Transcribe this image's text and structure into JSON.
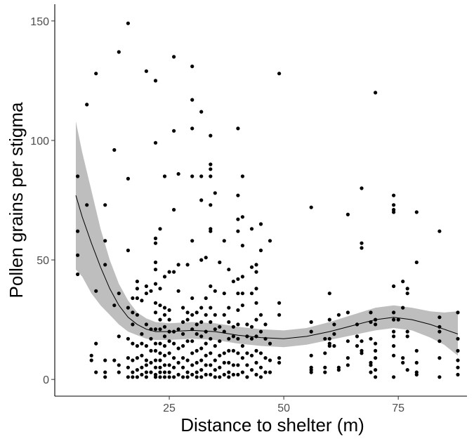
{
  "chart_data": {
    "type": "scatter",
    "title": "",
    "xlabel": "Distance to shelter (m)",
    "ylabel": "Pollen grains per stigma",
    "xlim": [
      0,
      90
    ],
    "ylim": [
      -7,
      157
    ],
    "x_ticks": [
      25,
      50,
      75
    ],
    "y_ticks": [
      0,
      50,
      100,
      150
    ],
    "grid": false,
    "legend": "none",
    "point_color": "#000000",
    "smooth_color": "#000000",
    "band_color": "#bebebe",
    "points": [
      [
        5,
        85
      ],
      [
        5,
        62
      ],
      [
        5,
        52
      ],
      [
        5,
        44
      ],
      [
        7,
        115
      ],
      [
        7,
        73
      ],
      [
        8,
        10
      ],
      [
        8,
        8
      ],
      [
        9,
        128
      ],
      [
        9,
        37
      ],
      [
        9,
        15
      ],
      [
        9,
        3
      ],
      [
        11,
        73
      ],
      [
        11,
        58
      ],
      [
        11,
        48
      ],
      [
        11,
        8
      ],
      [
        11,
        3
      ],
      [
        11,
        1
      ],
      [
        13,
        96
      ],
      [
        13,
        31
      ],
      [
        13,
        8
      ],
      [
        14,
        137
      ],
      [
        14,
        36
      ],
      [
        14,
        18
      ],
      [
        14,
        6
      ],
      [
        14,
        3
      ],
      [
        16,
        149
      ],
      [
        16,
        84
      ],
      [
        16,
        54
      ],
      [
        16,
        30
      ],
      [
        16,
        17
      ],
      [
        16,
        9
      ],
      [
        16,
        5
      ],
      [
        16,
        1
      ],
      [
        17,
        34
      ],
      [
        17,
        28
      ],
      [
        17,
        23
      ],
      [
        17,
        15
      ],
      [
        17,
        8
      ],
      [
        17,
        3
      ],
      [
        17,
        1
      ],
      [
        18,
        41
      ],
      [
        18,
        38
      ],
      [
        18,
        34
      ],
      [
        18,
        27
      ],
      [
        18,
        14
      ],
      [
        18,
        9
      ],
      [
        18,
        4
      ],
      [
        18,
        1
      ],
      [
        19,
        33
      ],
      [
        19,
        19
      ],
      [
        19,
        15
      ],
      [
        19,
        10
      ],
      [
        19,
        5
      ],
      [
        19,
        2
      ],
      [
        20,
        129
      ],
      [
        20,
        39
      ],
      [
        20,
        36
      ],
      [
        20,
        23
      ],
      [
        20,
        14
      ],
      [
        20,
        8
      ],
      [
        20,
        6
      ],
      [
        20,
        3
      ],
      [
        20,
        1
      ],
      [
        21,
        37
      ],
      [
        21,
        21
      ],
      [
        21,
        17
      ],
      [
        21,
        12
      ],
      [
        21,
        7
      ],
      [
        21,
        3
      ],
      [
        22,
        125
      ],
      [
        22,
        99
      ],
      [
        22,
        59
      ],
      [
        22,
        57
      ],
      [
        22,
        49
      ],
      [
        22,
        46
      ],
      [
        22,
        40
      ],
      [
        22,
        32
      ],
      [
        22,
        28
      ],
      [
        22,
        21
      ],
      [
        22,
        15
      ],
      [
        22,
        12
      ],
      [
        22,
        8
      ],
      [
        22,
        5
      ],
      [
        22,
        2
      ],
      [
        22,
        1
      ],
      [
        23,
        63
      ],
      [
        23,
        38
      ],
      [
        23,
        31
      ],
      [
        23,
        25
      ],
      [
        23,
        21
      ],
      [
        23,
        15
      ],
      [
        23,
        11
      ],
      [
        23,
        8
      ],
      [
        23,
        5
      ],
      [
        23,
        3
      ],
      [
        23,
        1
      ],
      [
        24,
        85
      ],
      [
        24,
        43
      ],
      [
        24,
        30
      ],
      [
        24,
        27
      ],
      [
        24,
        22
      ],
      [
        24,
        18
      ],
      [
        24,
        14
      ],
      [
        24,
        10
      ],
      [
        24,
        6
      ],
      [
        24,
        3
      ],
      [
        24,
        1
      ],
      [
        25,
        45
      ],
      [
        25,
        29
      ],
      [
        25,
        25
      ],
      [
        25,
        20
      ],
      [
        25,
        16
      ],
      [
        25,
        11
      ],
      [
        25,
        6
      ],
      [
        25,
        3
      ],
      [
        25,
        1
      ],
      [
        26,
        135
      ],
      [
        26,
        104
      ],
      [
        26,
        71
      ],
      [
        26,
        45
      ],
      [
        26,
        20
      ],
      [
        26,
        15
      ],
      [
        26,
        9
      ],
      [
        26,
        5
      ],
      [
        26,
        1
      ],
      [
        27,
        86
      ],
      [
        27,
        48
      ],
      [
        27,
        37
      ],
      [
        27,
        21
      ],
      [
        27,
        13
      ],
      [
        27,
        7
      ],
      [
        27,
        2
      ],
      [
        28,
        30
      ],
      [
        28,
        24
      ],
      [
        28,
        19
      ],
      [
        28,
        14
      ],
      [
        28,
        9
      ],
      [
        28,
        5
      ],
      [
        28,
        1
      ],
      [
        29,
        48
      ],
      [
        29,
        28
      ],
      [
        29,
        25
      ],
      [
        29,
        16
      ],
      [
        29,
        8
      ],
      [
        29,
        3
      ],
      [
        29,
        1
      ],
      [
        30,
        131
      ],
      [
        30,
        117
      ],
      [
        30,
        105
      ],
      [
        30,
        85
      ],
      [
        30,
        58
      ],
      [
        30,
        34
      ],
      [
        30,
        27
      ],
      [
        30,
        21
      ],
      [
        30,
        16
      ],
      [
        30,
        11
      ],
      [
        30,
        6
      ],
      [
        30,
        2
      ],
      [
        31,
        28
      ],
      [
        31,
        23
      ],
      [
        31,
        19
      ],
      [
        31,
        12
      ],
      [
        31,
        7
      ],
      [
        31,
        3
      ],
      [
        31,
        1
      ],
      [
        32,
        112
      ],
      [
        32,
        85
      ],
      [
        32,
        75
      ],
      [
        32,
        50
      ],
      [
        32,
        30
      ],
      [
        32,
        24
      ],
      [
        32,
        18
      ],
      [
        32,
        13
      ],
      [
        32,
        8
      ],
      [
        32,
        4
      ],
      [
        32,
        1
      ],
      [
        33,
        51
      ],
      [
        33,
        34
      ],
      [
        33,
        27
      ],
      [
        33,
        20
      ],
      [
        33,
        15
      ],
      [
        33,
        10
      ],
      [
        33,
        6
      ],
      [
        33,
        2
      ],
      [
        34,
        102
      ],
      [
        34,
        90
      ],
      [
        34,
        88
      ],
      [
        34,
        85
      ],
      [
        34,
        73
      ],
      [
        34,
        63
      ],
      [
        34,
        62
      ],
      [
        34,
        39
      ],
      [
        34,
        30
      ],
      [
        34,
        24
      ],
      [
        34,
        17
      ],
      [
        34,
        11
      ],
      [
        34,
        6
      ],
      [
        34,
        2
      ],
      [
        35,
        78
      ],
      [
        35,
        37
      ],
      [
        35,
        27
      ],
      [
        35,
        21
      ],
      [
        35,
        14
      ],
      [
        35,
        8
      ],
      [
        35,
        4
      ],
      [
        35,
        1
      ],
      [
        36,
        49
      ],
      [
        36,
        22
      ],
      [
        36,
        16
      ],
      [
        36,
        10
      ],
      [
        36,
        5
      ],
      [
        36,
        1
      ],
      [
        37,
        58
      ],
      [
        37,
        36
      ],
      [
        37,
        27
      ],
      [
        37,
        20
      ],
      [
        37,
        11
      ],
      [
        37,
        7
      ],
      [
        37,
        2
      ],
      [
        38,
        46
      ],
      [
        38,
        30
      ],
      [
        38,
        24
      ],
      [
        38,
        17
      ],
      [
        38,
        12
      ],
      [
        38,
        7
      ],
      [
        38,
        3
      ],
      [
        38,
        1
      ],
      [
        39,
        41
      ],
      [
        39,
        22
      ],
      [
        39,
        18
      ],
      [
        39,
        12
      ],
      [
        39,
        6
      ],
      [
        39,
        2
      ],
      [
        40,
        105
      ],
      [
        40,
        77
      ],
      [
        40,
        67
      ],
      [
        40,
        62
      ],
      [
        40,
        42
      ],
      [
        40,
        36
      ],
      [
        40,
        29
      ],
      [
        40,
        23
      ],
      [
        40,
        17
      ],
      [
        40,
        11
      ],
      [
        40,
        6
      ],
      [
        40,
        2
      ],
      [
        41,
        85
      ],
      [
        41,
        68
      ],
      [
        41,
        56
      ],
      [
        41,
        43
      ],
      [
        41,
        36
      ],
      [
        41,
        31
      ],
      [
        41,
        14
      ],
      [
        41,
        9
      ],
      [
        41,
        3
      ],
      [
        42,
        23
      ],
      [
        42,
        18
      ],
      [
        42,
        11
      ],
      [
        42,
        6
      ],
      [
        42,
        1
      ],
      [
        43,
        63
      ],
      [
        43,
        47
      ],
      [
        43,
        36
      ],
      [
        43,
        22
      ],
      [
        43,
        17
      ],
      [
        43,
        10
      ],
      [
        43,
        4
      ],
      [
        44,
        48
      ],
      [
        44,
        45
      ],
      [
        44,
        38
      ],
      [
        44,
        32
      ],
      [
        44,
        25
      ],
      [
        44,
        18
      ],
      [
        44,
        12
      ],
      [
        44,
        7
      ],
      [
        44,
        2
      ],
      [
        45,
        65
      ],
      [
        45,
        54
      ],
      [
        45,
        27
      ],
      [
        45,
        20
      ],
      [
        45,
        11
      ],
      [
        45,
        5
      ],
      [
        45,
        1
      ],
      [
        46,
        23
      ],
      [
        46,
        17
      ],
      [
        46,
        9
      ],
      [
        46,
        3
      ],
      [
        47,
        58
      ],
      [
        47,
        15
      ],
      [
        47,
        8
      ],
      [
        47,
        3
      ],
      [
        49,
        128
      ],
      [
        49,
        32
      ],
      [
        49,
        27
      ],
      [
        49,
        9
      ],
      [
        49,
        7
      ],
      [
        56,
        72
      ],
      [
        56,
        24
      ],
      [
        56,
        20
      ],
      [
        56,
        10
      ],
      [
        56,
        5
      ],
      [
        56,
        4
      ],
      [
        56,
        3
      ],
      [
        59,
        17
      ],
      [
        59,
        11
      ],
      [
        59,
        5
      ],
      [
        59,
        3
      ],
      [
        60,
        36
      ],
      [
        60,
        25
      ],
      [
        60,
        17
      ],
      [
        60,
        15
      ],
      [
        60,
        14
      ],
      [
        61,
        23
      ],
      [
        61,
        19
      ],
      [
        61,
        14
      ],
      [
        62,
        27
      ],
      [
        62,
        5
      ],
      [
        62,
        4
      ],
      [
        64,
        69
      ],
      [
        64,
        28
      ],
      [
        64,
        16
      ],
      [
        64,
        9
      ],
      [
        64,
        6
      ],
      [
        66,
        23
      ],
      [
        66,
        18
      ],
      [
        66,
        14
      ],
      [
        67,
        80
      ],
      [
        67,
        57
      ],
      [
        67,
        55
      ],
      [
        67,
        16
      ],
      [
        67,
        12
      ],
      [
        67,
        11
      ],
      [
        69,
        28
      ],
      [
        69,
        24
      ],
      [
        69,
        17
      ],
      [
        69,
        7
      ],
      [
        69,
        6
      ],
      [
        69,
        3
      ],
      [
        70,
        120
      ],
      [
        70,
        25
      ],
      [
        70,
        23
      ],
      [
        70,
        15
      ],
      [
        70,
        12
      ],
      [
        70,
        9
      ],
      [
        70,
        4
      ],
      [
        70,
        1
      ],
      [
        74,
        77
      ],
      [
        74,
        73
      ],
      [
        74,
        71
      ],
      [
        74,
        70
      ],
      [
        74,
        39
      ],
      [
        74,
        28
      ],
      [
        74,
        25
      ],
      [
        74,
        20
      ],
      [
        74,
        18
      ],
      [
        74,
        14
      ],
      [
        74,
        10
      ],
      [
        74,
        1
      ],
      [
        75,
        25
      ],
      [
        76,
        41
      ],
      [
        76,
        30
      ],
      [
        76,
        9
      ],
      [
        76,
        7
      ],
      [
        77,
        38
      ],
      [
        77,
        36
      ],
      [
        77,
        20
      ],
      [
        77,
        18
      ],
      [
        77,
        4
      ],
      [
        79,
        70
      ],
      [
        79,
        49
      ],
      [
        79,
        12
      ],
      [
        79,
        7
      ],
      [
        79,
        3
      ],
      [
        79,
        2
      ],
      [
        84,
        62
      ],
      [
        84,
        26
      ],
      [
        84,
        22
      ],
      [
        84,
        20
      ],
      [
        84,
        16
      ],
      [
        84,
        9
      ],
      [
        84,
        1
      ],
      [
        88,
        28
      ],
      [
        88,
        17
      ],
      [
        88,
        12
      ],
      [
        88,
        8
      ],
      [
        88,
        5
      ],
      [
        88,
        2
      ]
    ],
    "smooth_line": [
      [
        4.6,
        77
      ],
      [
        6,
        68
      ],
      [
        8,
        57
      ],
      [
        10,
        47
      ],
      [
        12,
        38
      ],
      [
        14,
        31
      ],
      [
        16,
        26
      ],
      [
        18,
        23
      ],
      [
        20,
        21
      ],
      [
        22,
        20
      ],
      [
        25,
        20
      ],
      [
        30,
        20.5
      ],
      [
        35,
        20
      ],
      [
        40,
        18.5
      ],
      [
        45,
        17.5
      ],
      [
        50,
        17
      ],
      [
        55,
        18
      ],
      [
        60,
        20
      ],
      [
        65,
        22.5
      ],
      [
        70,
        25
      ],
      [
        74,
        26
      ],
      [
        78,
        25
      ],
      [
        82,
        23
      ],
      [
        85,
        21
      ],
      [
        88,
        19
      ]
    ],
    "ci_upper": [
      [
        4.6,
        108
      ],
      [
        6,
        95
      ],
      [
        8,
        79
      ],
      [
        10,
        63
      ],
      [
        12,
        50
      ],
      [
        14,
        40
      ],
      [
        16,
        33
      ],
      [
        18,
        28
      ],
      [
        20,
        25.5
      ],
      [
        22,
        24
      ],
      [
        25,
        23.5
      ],
      [
        30,
        24
      ],
      [
        35,
        23.5
      ],
      [
        40,
        22
      ],
      [
        45,
        21
      ],
      [
        50,
        20.5
      ],
      [
        55,
        21.5
      ],
      [
        60,
        24
      ],
      [
        65,
        27
      ],
      [
        70,
        30
      ],
      [
        74,
        31
      ],
      [
        78,
        30
      ],
      [
        82,
        28.5
      ],
      [
        85,
        28
      ],
      [
        88,
        28.5
      ]
    ],
    "ci_lower": [
      [
        4.6,
        46
      ],
      [
        6,
        43
      ],
      [
        8,
        36
      ],
      [
        10,
        31
      ],
      [
        12,
        27
      ],
      [
        14,
        23
      ],
      [
        16,
        20
      ],
      [
        18,
        18.5
      ],
      [
        20,
        17
      ],
      [
        22,
        16.5
      ],
      [
        25,
        16.5
      ],
      [
        30,
        17
      ],
      [
        35,
        16.5
      ],
      [
        40,
        15
      ],
      [
        45,
        14
      ],
      [
        50,
        13.5
      ],
      [
        55,
        14.5
      ],
      [
        60,
        16.5
      ],
      [
        65,
        18.5
      ],
      [
        70,
        20.5
      ],
      [
        74,
        21.5
      ],
      [
        78,
        20.5
      ],
      [
        82,
        17.5
      ],
      [
        85,
        14.5
      ],
      [
        88,
        10
      ]
    ]
  }
}
